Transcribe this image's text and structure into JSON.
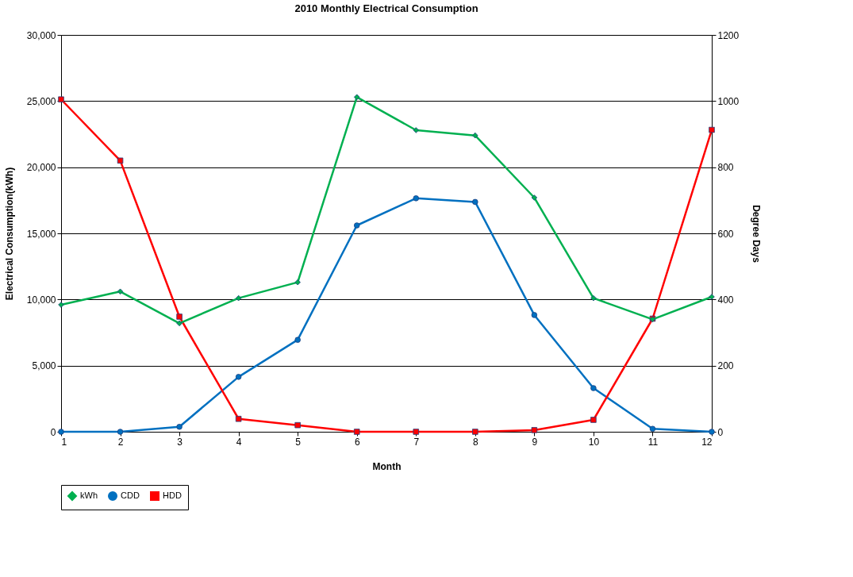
{
  "chart_data": {
    "type": "line",
    "title": "2010 Monthly Electrical Consumption",
    "xlabel": "Month",
    "ylabel": "Electrical Consumption(kWh)",
    "y2label": "Degree Days",
    "x": [
      1,
      2,
      3,
      4,
      5,
      6,
      7,
      8,
      9,
      10,
      11,
      12
    ],
    "series": [
      {
        "name": "kWh",
        "color": "#00b050",
        "marker": "diamond",
        "values": [
          9600,
          10600,
          8200,
          10100,
          11300,
          25300,
          22800,
          22400,
          17700,
          10100,
          8500,
          10200
        ]
      },
      {
        "name": "CDD",
        "color": "#0070c0",
        "marker": "circle",
        "axis": "y2",
        "values": [
          0,
          0,
          15,
          166,
          278,
          624,
          706,
          695,
          353,
          132,
          9,
          0
        ]
      },
      {
        "name": "HDD",
        "color": "#ff0000",
        "marker": "square",
        "axis": "y2",
        "values": [
          1005,
          820,
          348,
          39,
          20,
          0,
          0,
          0,
          5,
          36,
          342,
          913
        ]
      }
    ],
    "xlim": [
      1,
      12
    ],
    "xticks": [
      1,
      2,
      3,
      4,
      5,
      6,
      7,
      8,
      9,
      10,
      11,
      12
    ],
    "ylim": [
      0,
      30000
    ],
    "yticks": [
      0,
      {
        "value": 5000,
        "label": "5,000"
      },
      {
        "value": 10000,
        "label": "10,000"
      },
      {
        "value": 15000,
        "label": "15,000"
      },
      {
        "value": 20000,
        "label": "20,000"
      },
      {
        "value": 25000,
        "label": "25,000"
      },
      {
        "value": 30000,
        "label": "30,000"
      }
    ],
    "y2lim": [
      0,
      1200
    ],
    "y2ticks": [
      0,
      200,
      400,
      600,
      800,
      1000,
      1200
    ],
    "grid": "y",
    "legend": "bottom",
    "line_style": "solid"
  }
}
